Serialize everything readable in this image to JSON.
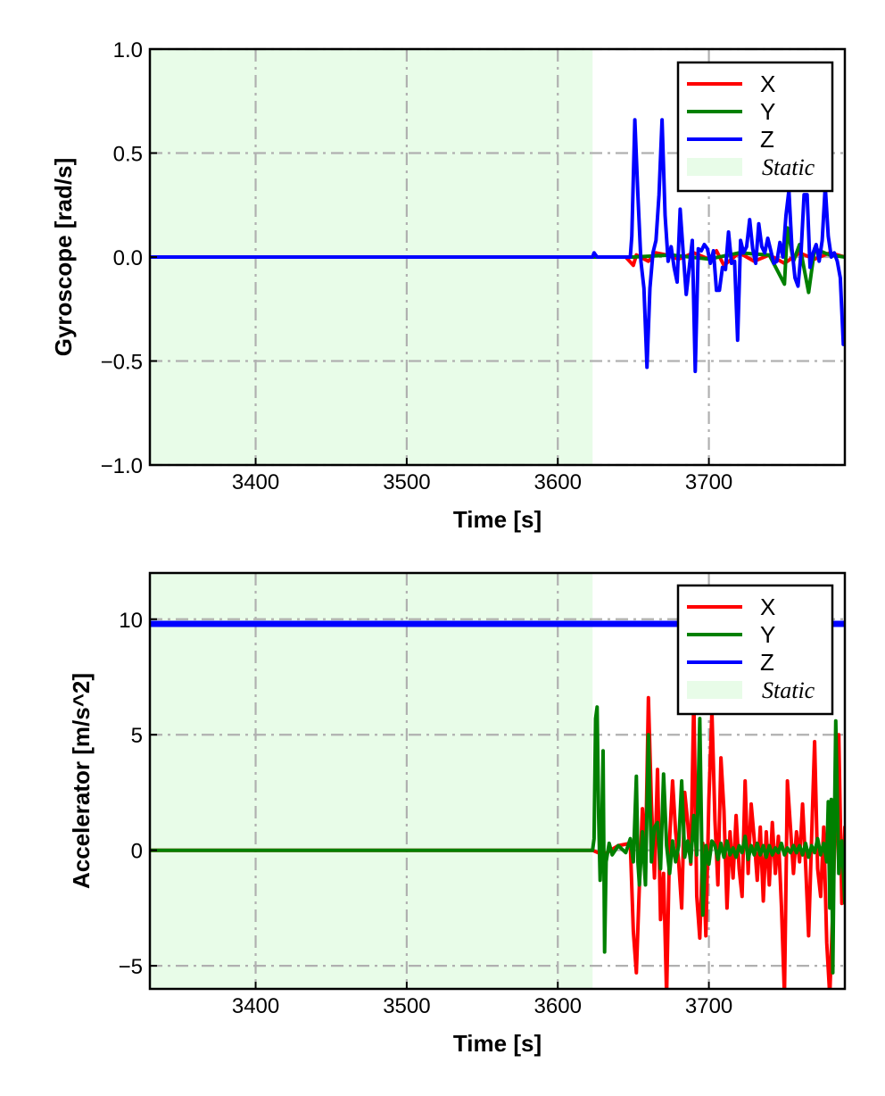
{
  "chart_data": [
    {
      "type": "line",
      "xlabel": "Time [s]",
      "ylabel": "Gyroscope [rad/s]",
      "xlim": [
        3330,
        3790
      ],
      "ylim": [
        -1.0,
        1.0
      ],
      "xticks": [
        3400,
        3500,
        3600,
        3700
      ],
      "xtick_labels": [
        "3400",
        "3500",
        "3600",
        "3700"
      ],
      "yticks": [
        1.0,
        0.5,
        0.0,
        -0.5,
        -1.0
      ],
      "ytick_labels": [
        "1.0",
        "0.5",
        "0.0",
        "−0.5",
        "−1.0"
      ],
      "grid": true,
      "legend_position": "top-right",
      "static_region": {
        "label": "Static",
        "x": [
          3330,
          3623
        ],
        "color": "#e8fce8"
      },
      "series": [
        {
          "name": "X",
          "color": "#ff0000",
          "x": [
            3330,
            3623,
            3645,
            3650,
            3652,
            3660,
            3665,
            3672,
            3680,
            3690,
            3700,
            3705,
            3710,
            3720,
            3730,
            3740,
            3750,
            3760,
            3770,
            3780,
            3790
          ],
          "y": [
            0,
            0,
            0,
            -0.04,
            0.01,
            -0.02,
            0.02,
            0.01,
            -0.01,
            0.02,
            -0.01,
            0.03,
            -0.04,
            0.02,
            -0.02,
            0.01,
            -0.03,
            0.02,
            -0.01,
            0.02,
            0.0
          ]
        },
        {
          "name": "Y",
          "color": "#008000",
          "x": [
            3330,
            3623,
            3650,
            3675,
            3700,
            3720,
            3740,
            3750,
            3752,
            3756,
            3760,
            3766,
            3770,
            3780,
            3790
          ],
          "y": [
            0,
            0,
            0,
            0.01,
            -0.01,
            0.02,
            0.01,
            -0.13,
            0.14,
            -0.02,
            0.06,
            -0.17,
            0.04,
            0.01,
            0.0
          ]
        },
        {
          "name": "Z",
          "color": "#0000ff",
          "x": [
            3330,
            3623,
            3624,
            3626,
            3648,
            3649,
            3651,
            3653,
            3655,
            3657,
            3659,
            3661,
            3663,
            3665,
            3667,
            3669,
            3671,
            3673,
            3675,
            3677,
            3679,
            3681,
            3683,
            3685,
            3687,
            3689,
            3691,
            3693,
            3695,
            3697,
            3699,
            3701,
            3703,
            3705,
            3707,
            3709,
            3711,
            3713,
            3715,
            3717,
            3719,
            3721,
            3723,
            3725,
            3727,
            3729,
            3731,
            3733,
            3735,
            3737,
            3739,
            3741,
            3743,
            3745,
            3747,
            3749,
            3751,
            3753,
            3755,
            3757,
            3759,
            3761,
            3763,
            3765,
            3767,
            3769,
            3771,
            3773,
            3775,
            3777,
            3779,
            3781,
            3783,
            3785,
            3787,
            3789,
            3790
          ],
          "y": [
            0,
            0,
            0.02,
            0,
            0,
            0.1,
            0.66,
            0.3,
            -0.02,
            -0.15,
            -0.53,
            -0.15,
            0.02,
            0.08,
            0.3,
            0.66,
            0.2,
            -0.02,
            0.05,
            -0.05,
            -0.12,
            0.23,
            0.02,
            -0.18,
            -0.05,
            0.08,
            -0.55,
            0.04,
            0.03,
            0.06,
            0.04,
            -0.03,
            0.03,
            -0.16,
            -0.16,
            -0.05,
            -0.06,
            0.12,
            -0.03,
            -0.02,
            -0.4,
            0.08,
            0.02,
            0.05,
            0.18,
            0.04,
            -0.03,
            0.16,
            0.05,
            0.02,
            0.09,
            0.03,
            -0.03,
            -0.02,
            0.07,
            0.0,
            0.2,
            0.32,
            0.04,
            -0.1,
            -0.14,
            0.02,
            0.3,
            0.3,
            -0.05,
            0.02,
            0.06,
            -0.02,
            0.08,
            0.34,
            0.1,
            0.0,
            0.02,
            -0.02,
            -0.1,
            -0.42,
            -0.42
          ]
        }
      ]
    },
    {
      "type": "line",
      "xlabel": "Time [s]",
      "ylabel": "Accelerator [m/s^2]",
      "xlim": [
        3330,
        3790
      ],
      "ylim": [
        -6,
        12
      ],
      "xticks": [
        3400,
        3500,
        3600,
        3700
      ],
      "xtick_labels": [
        "3400",
        "3500",
        "3600",
        "3700"
      ],
      "yticks": [
        10,
        5,
        0,
        -5
      ],
      "ytick_labels": [
        "10",
        "5",
        "0",
        "−5"
      ],
      "grid": true,
      "legend_position": "top-right",
      "static_region": {
        "label": "Static",
        "x": [
          3330,
          3623
        ],
        "color": "#e8fce8"
      },
      "series": [
        {
          "name": "X",
          "color": "#ff0000",
          "x": [
            3330,
            3623,
            3630,
            3640,
            3648,
            3650,
            3652,
            3654,
            3656,
            3658,
            3660,
            3662,
            3664,
            3666,
            3668,
            3670,
            3672,
            3674,
            3676,
            3678,
            3680,
            3682,
            3684,
            3686,
            3688,
            3690,
            3692,
            3694,
            3696,
            3698,
            3700,
            3702,
            3704,
            3706,
            3708,
            3710,
            3712,
            3714,
            3716,
            3718,
            3720,
            3722,
            3724,
            3726,
            3728,
            3730,
            3732,
            3734,
            3736,
            3738,
            3740,
            3742,
            3744,
            3746,
            3748,
            3750,
            3752,
            3754,
            3756,
            3758,
            3760,
            3762,
            3764,
            3766,
            3768,
            3770,
            3772,
            3774,
            3776,
            3778,
            3780,
            3782,
            3784,
            3786,
            3788,
            3790
          ],
          "y": [
            0,
            0,
            -0.2,
            0.2,
            0.3,
            -3.5,
            -5.3,
            -1.5,
            1.8,
            -0.5,
            6.6,
            2.0,
            -1.2,
            3.5,
            -3.0,
            -1.0,
            -6.3,
            0.5,
            3.0,
            0.8,
            -0.5,
            -2.5,
            2.5,
            1.2,
            -0.6,
            6.6,
            -2.0,
            -3.8,
            0.3,
            -3.7,
            2.2,
            6.0,
            1.3,
            -1.5,
            4.0,
            1.7,
            -2.5,
            0.8,
            -1.2,
            1.5,
            -0.8,
            -2.0,
            3.0,
            -1.0,
            2.0,
            0.5,
            -1.3,
            1.0,
            -2.2,
            0.8,
            -1.5,
            1.2,
            -1.0,
            0.6,
            -2.4,
            -6.3,
            3.0,
            1.0,
            -1.0,
            0.8,
            -0.5,
            2.0,
            -0.6,
            -3.7,
            0.5,
            4.7,
            -0.8,
            -2.0,
            1.0,
            -4.0,
            -6.3,
            -2.5,
            2.0,
            5.0,
            -2.3,
            1.0
          ]
        },
        {
          "name": "Y",
          "color": "#008000",
          "x": [
            3330,
            3623,
            3624,
            3625,
            3626,
            3627,
            3628,
            3629,
            3630,
            3631,
            3632,
            3634,
            3636,
            3640,
            3645,
            3648,
            3650,
            3652,
            3653,
            3654,
            3656,
            3658,
            3660,
            3662,
            3664,
            3666,
            3668,
            3670,
            3672,
            3674,
            3676,
            3678,
            3680,
            3682,
            3684,
            3686,
            3688,
            3690,
            3692,
            3694,
            3696,
            3698,
            3700,
            3702,
            3704,
            3706,
            3708,
            3710,
            3712,
            3714,
            3716,
            3718,
            3720,
            3722,
            3724,
            3726,
            3728,
            3730,
            3732,
            3734,
            3736,
            3738,
            3740,
            3742,
            3744,
            3746,
            3748,
            3750,
            3752,
            3754,
            3756,
            3758,
            3760,
            3762,
            3764,
            3766,
            3768,
            3770,
            3772,
            3774,
            3776,
            3778,
            3779,
            3780,
            3781,
            3782,
            3783,
            3784,
            3786,
            3788,
            3790
          ],
          "y": [
            0,
            0,
            0.5,
            5.7,
            6.2,
            1.5,
            -1.3,
            0.5,
            4.3,
            -4.4,
            -0.5,
            0.3,
            -0.2,
            0.2,
            -0.1,
            0.5,
            -0.5,
            3.2,
            -0.5,
            -1.5,
            0.8,
            -1.5,
            5.0,
            -0.5,
            1.0,
            1.2,
            -0.8,
            3.3,
            0.2,
            -1.0,
            0.4,
            -0.5,
            0.2,
            3.0,
            -0.3,
            0.4,
            -0.5,
            1.5,
            -0.2,
            5.7,
            -2.8,
            0.2,
            -0.6,
            0.4,
            0.2,
            -0.4,
            0.3,
            -0.3,
            0.4,
            -0.2,
            0.1,
            -0.3,
            0.2,
            -0.1,
            0.6,
            -0.4,
            0.2,
            -0.2,
            0.3,
            -0.2,
            0.2,
            -0.3,
            0.2,
            -0.2,
            0.1,
            -0.1,
            0.3,
            -0.2,
            0.1,
            -0.1,
            0.2,
            -0.1,
            0.2,
            -0.2,
            0.3,
            -0.3,
            0.2,
            -0.1,
            0.5,
            -0.2,
            0.3,
            -0.5,
            2.1,
            -2.5,
            2.2,
            -5.3,
            0.5,
            5.6,
            -1.0,
            0.4,
            -2.3
          ]
        },
        {
          "name": "Z",
          "color": "#0000ff",
          "x": [
            3330,
            3400,
            3500,
            3600,
            3700,
            3790
          ],
          "y": [
            9.8,
            9.8,
            9.8,
            9.8,
            9.8,
            9.8
          ]
        }
      ]
    }
  ]
}
